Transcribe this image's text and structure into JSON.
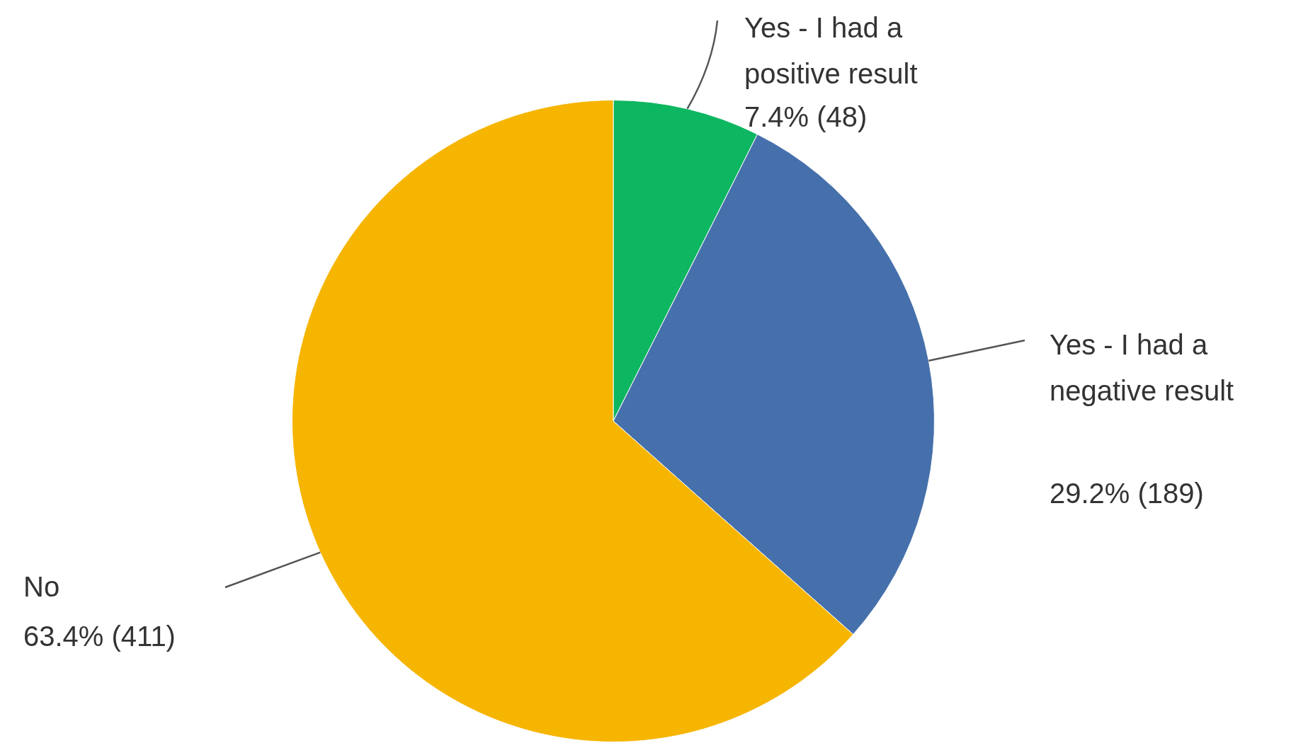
{
  "chart_data": {
    "type": "pie",
    "categories": [
      "Yes - I had a positive result",
      "Yes - I had a negative result",
      "No"
    ],
    "values": [
      48,
      189,
      411
    ],
    "value_labels": [
      "7.4% (48)",
      "29.2% (189)",
      "63.4% (411)"
    ],
    "colors": [
      "#0db660",
      "#4670ab",
      "#f6b500"
    ],
    "legend": false
  }
}
